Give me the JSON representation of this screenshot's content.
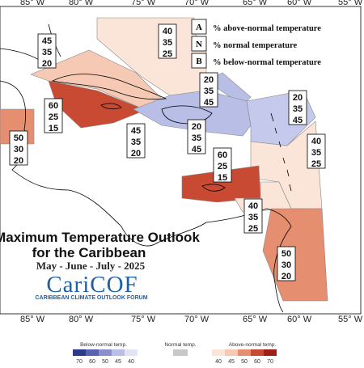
{
  "longitude_labels": [
    "85° W",
    "80° W",
    "75° W",
    "70° W",
    "65° W",
    "60° W",
    "55° W"
  ],
  "title_line1": "Maximum Temperature Outlook",
  "title_line2": "for the Caribbean",
  "period": "May - June - July - 2025",
  "logo_text": "CariCOF",
  "logo_subtitle": "CARIBBEAN CLIMATE OUTLOOK FORUM",
  "legend": [
    {
      "key": "A",
      "text": "% above-normal temperature"
    },
    {
      "key": "N",
      "text": "% normal temperature"
    },
    {
      "key": "B",
      "text": "% below-normal temperature"
    }
  ],
  "regions": [
    {
      "name": "belize",
      "probabilities": [
        "50",
        "30",
        "20"
      ],
      "fill": "#e58e70"
    },
    {
      "name": "cayman-jamaica",
      "probabilities": [
        "60",
        "25",
        "15"
      ],
      "fill": "#c94a32"
    },
    {
      "name": "cuba",
      "probabilities": [
        "45",
        "35",
        "20"
      ],
      "fill": "#f6c9b4"
    },
    {
      "name": "bahamas",
      "probabilities": [
        "40",
        "35",
        "25"
      ],
      "fill": "#fbe4d8"
    },
    {
      "name": "turks-caicos",
      "probabilities": [
        "20",
        "35",
        "45"
      ],
      "fill": "#b9bee6"
    },
    {
      "name": "hispaniola",
      "probabilities": [
        "20",
        "35",
        "45"
      ],
      "fill": "#b9bee6"
    },
    {
      "name": "jamaica-south",
      "probabilities": [
        "45",
        "35",
        "20"
      ],
      "fill": "#f6c9b4"
    },
    {
      "name": "leeward-north",
      "probabilities": [
        "20",
        "35",
        "45"
      ],
      "fill": "#c5c9ec"
    },
    {
      "name": "windward",
      "probabilities": [
        "40",
        "35",
        "25"
      ],
      "fill": "#fbe4d8"
    },
    {
      "name": "puerto-rico",
      "probabilities": [
        "60",
        "25",
        "15"
      ],
      "fill": "#c94a32"
    },
    {
      "name": "abc-islands",
      "probabilities": [
        "40",
        "35",
        "25"
      ],
      "fill": "#fbe4d8"
    },
    {
      "name": "guianas",
      "probabilities": [
        "50",
        "30",
        "20"
      ],
      "fill": "#e58e70"
    }
  ],
  "colorbar": {
    "below_title": "Below-normal temp.",
    "normal_title": "Normal temp.",
    "above_title": "Above-normal temp.",
    "below_ticks": [
      "70",
      "60",
      "50",
      "45",
      "40"
    ],
    "above_ticks": [
      "40",
      "45",
      "50",
      "60",
      "70"
    ],
    "below_colors": [
      "#2c3a8c",
      "#5862b0",
      "#8990cc",
      "#b9bee6",
      "#e2e4f5"
    ],
    "normal_color": "#c8c8c8",
    "above_colors": [
      "#fbe4d8",
      "#f6c9b4",
      "#e58e70",
      "#c94a32",
      "#9d1f17"
    ]
  }
}
